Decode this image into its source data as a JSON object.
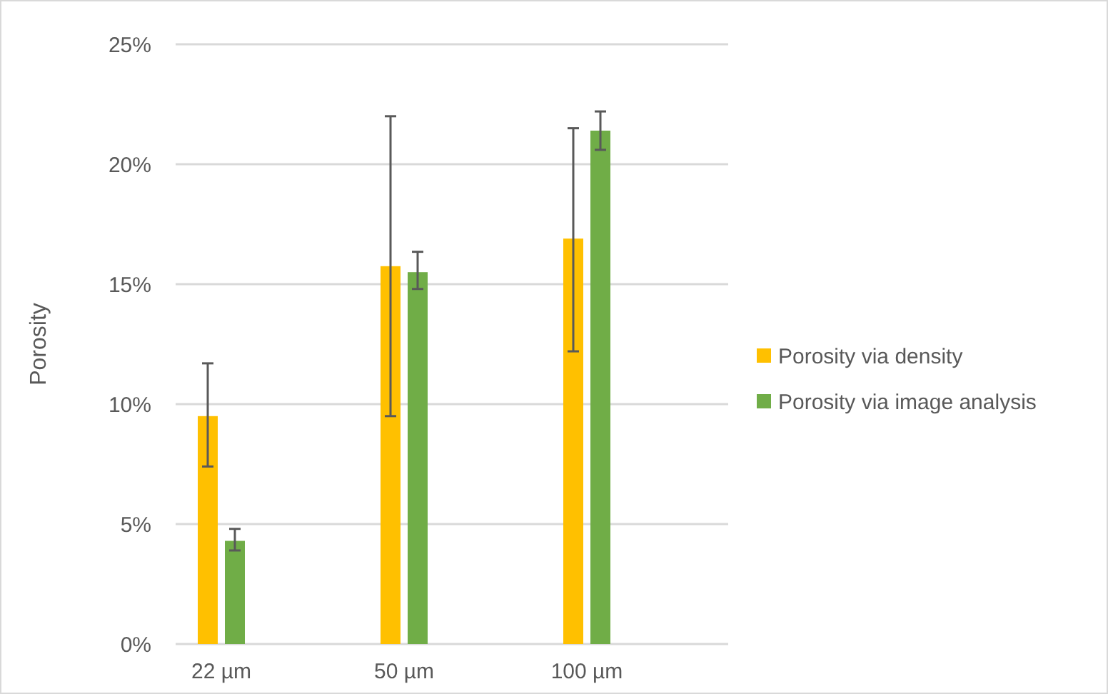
{
  "chart_data": {
    "type": "bar",
    "ylabel": "Porosity",
    "categories": [
      "22 µm",
      "50 µm",
      "100 µm"
    ],
    "series": [
      {
        "name": "Porosity via density",
        "color": "#ffc000",
        "values": [
          9.5,
          15.75,
          16.9
        ],
        "errors": [
          [
            7.4,
            11.7
          ],
          [
            9.5,
            22.0
          ],
          [
            12.2,
            21.5
          ]
        ]
      },
      {
        "name": "Porosity via image analysis",
        "color": "#70ad47",
        "values": [
          4.3,
          15.5,
          21.4
        ],
        "errors": [
          [
            3.9,
            4.8
          ],
          [
            14.8,
            16.35
          ],
          [
            20.6,
            22.2
          ]
        ]
      }
    ],
    "ylim": [
      0,
      25
    ],
    "yticks": [
      {
        "value": 0,
        "label": "0%"
      },
      {
        "value": 5,
        "label": "5%"
      },
      {
        "value": 10,
        "label": "10%"
      },
      {
        "value": 15,
        "label": "15%"
      },
      {
        "value": 20,
        "label": "20%"
      },
      {
        "value": 25,
        "label": "25%"
      }
    ],
    "grid": "y",
    "legend": "right"
  }
}
